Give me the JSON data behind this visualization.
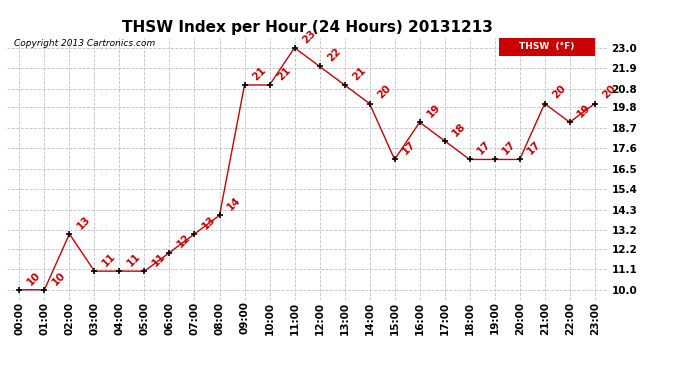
{
  "title": "THSW Index per Hour (24 Hours) 20131213",
  "copyright": "Copyright 2013 Cartronics.com",
  "legend_label": "THSW  (°F)",
  "hours": [
    "00:00",
    "01:00",
    "02:00",
    "03:00",
    "04:00",
    "05:00",
    "06:00",
    "07:00",
    "08:00",
    "09:00",
    "10:00",
    "11:00",
    "12:00",
    "13:00",
    "14:00",
    "15:00",
    "16:00",
    "17:00",
    "18:00",
    "19:00",
    "20:00",
    "21:00",
    "22:00",
    "23:00"
  ],
  "values": [
    10,
    10,
    13,
    11,
    11,
    11,
    12,
    13,
    14,
    21,
    21,
    23,
    22,
    21,
    20,
    17,
    19,
    18,
    17,
    17,
    17,
    20,
    19,
    20
  ],
  "ylim": [
    9.45,
    23.55
  ],
  "yticks": [
    10.0,
    11.1,
    12.2,
    13.2,
    14.3,
    15.4,
    16.5,
    17.6,
    18.7,
    19.8,
    20.8,
    21.9,
    23.0
  ],
  "line_color": "#cc0000",
  "marker_color": "#000000",
  "bg_color": "#ffffff",
  "grid_color": "#c0c0c0",
  "title_fontsize": 11,
  "label_fontsize": 7.5,
  "annotation_fontsize": 7.5,
  "legend_bg": "#cc0000",
  "legend_text_color": "#ffffff"
}
